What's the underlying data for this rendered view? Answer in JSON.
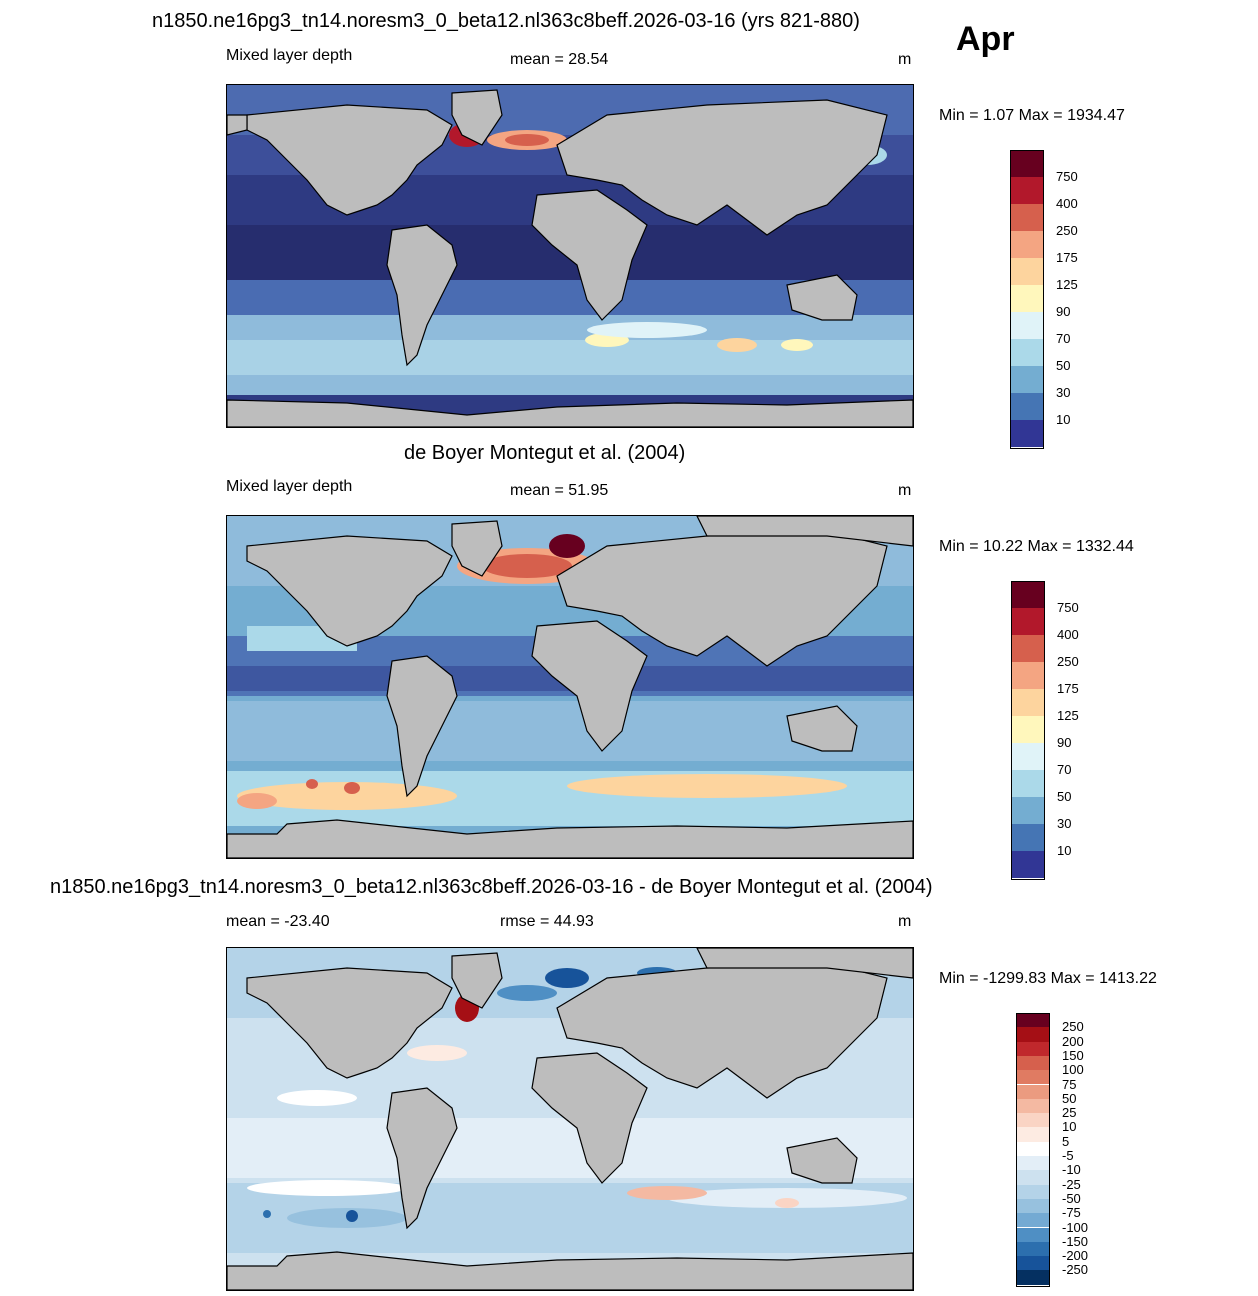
{
  "header": {
    "run_title": "n1850.ne16pg3_tn14.noresm3_0_beta12.nl363c8beff.2026-03-16 (yrs 821-880)",
    "month": "Apr"
  },
  "panels": [
    {
      "id": "model",
      "title": "",
      "left_label": "Mixed layer depth",
      "center_label": "mean =  28.54",
      "units": "m",
      "minmax": "Min =   1.07 Max = 1934.47",
      "colorbar_labels": [
        "750",
        "400",
        "250",
        "175",
        "125",
        "90",
        "70",
        "50",
        "30",
        "10"
      ],
      "colorbar_colors": [
        "#67001f",
        "#b2182b",
        "#d6604d",
        "#f4a582",
        "#fdd49e",
        "#fff7bc",
        "#e0f3f8",
        "#abd9e9",
        "#74add1",
        "#4575b4",
        "#313695"
      ]
    },
    {
      "id": "obs",
      "title": "de Boyer Montegut et al. (2004)",
      "left_label": "Mixed layer depth",
      "center_label": "mean =  51.95",
      "units": "m",
      "minmax": "Min =  10.22 Max = 1332.44",
      "colorbar_labels": [
        "750",
        "400",
        "250",
        "175",
        "125",
        "90",
        "70",
        "50",
        "30",
        "10"
      ],
      "colorbar_colors": [
        "#67001f",
        "#b2182b",
        "#d6604d",
        "#f4a582",
        "#fdd49e",
        "#fff7bc",
        "#e0f3f8",
        "#abd9e9",
        "#74add1",
        "#4575b4",
        "#313695"
      ]
    },
    {
      "id": "diff",
      "title": "n1850.ne16pg3_tn14.noresm3_0_beta12.nl363c8beff.2026-03-16 - de Boyer Montegut et al. (2004)",
      "left_label": "mean = -23.40",
      "center_label": "rmse =  44.93",
      "units": "m",
      "minmax": "Min = -1299.83 Max = 1413.22",
      "colorbar_labels": [
        "250",
        "200",
        "150",
        "100",
        "75",
        "50",
        "25",
        "10",
        "5",
        "-5",
        "-10",
        "-25",
        "-50",
        "-75",
        "-100",
        "-150",
        "-200",
        "-250"
      ],
      "colorbar_colors": [
        "#67001f",
        "#a50f15",
        "#c0282c",
        "#d6604d",
        "#e07b62",
        "#eb9b80",
        "#f4b9a2",
        "#fad4c4",
        "#fdebe2",
        "#ffffff",
        "#e3eef7",
        "#cde1ef",
        "#b4d3e8",
        "#97c1de",
        "#74aad3",
        "#4f8fc4",
        "#2c6fae",
        "#17539a",
        "#053061"
      ]
    }
  ]
}
